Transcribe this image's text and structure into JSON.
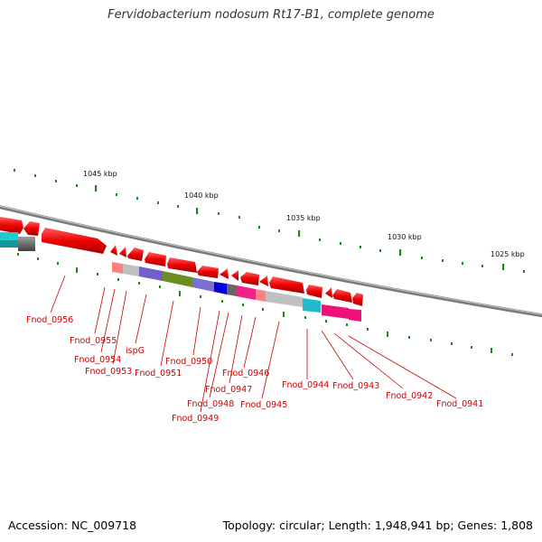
{
  "title": "Fervidobacterium nodosum Rt17-B1, complete genome",
  "footer": {
    "accession": "Accession: NC_009718",
    "topology": "Topology: circular; Length: 1,948,941 bp; Genes: 1,808"
  },
  "scale_labels": [
    "1045 kbp",
    "1040 kbp",
    "1035 kbp",
    "1030 kbp",
    "1025 kbp"
  ],
  "gene_labels": [
    "Fnod_0956",
    "Fnod_0955",
    "Fnod_0954",
    "Fnod_0953",
    "ispG",
    "Fnod_0951",
    "Fnod_0950",
    "Fnod_0949",
    "Fnod_0948",
    "Fnod_0947",
    "Fnod_0946",
    "Fnod_0945",
    "Fnod_0944",
    "Fnod_0943",
    "Fnod_0942",
    "Fnod_0941"
  ],
  "colors": {
    "backbone": "#808080",
    "tick": "#1a8a1a",
    "gene_arrow": "#ee0000",
    "label": "#cc0000"
  }
}
